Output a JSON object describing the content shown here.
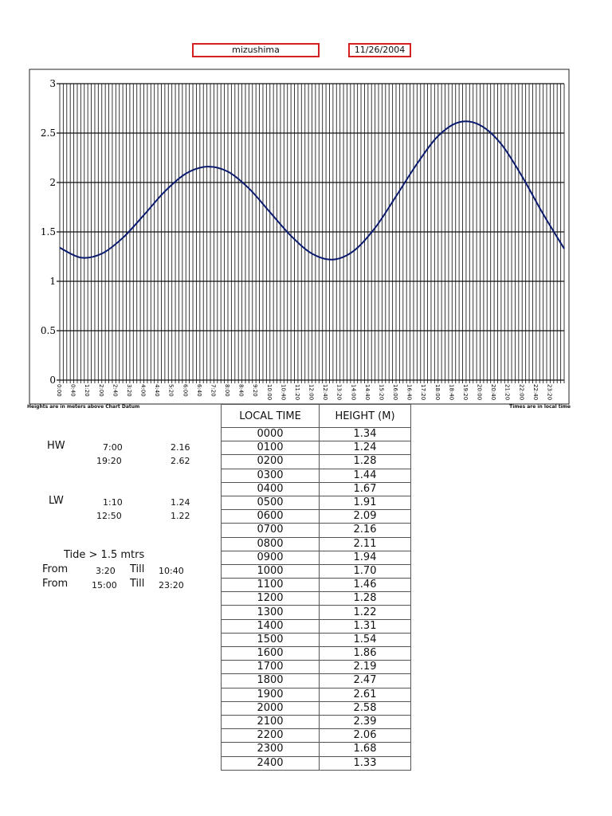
{
  "header": {
    "station": "mizushima",
    "date": "11/26/2004"
  },
  "notes": {
    "left": "Heights are in meters above Chart Datum",
    "right": "Times are in local time"
  },
  "summary": {
    "hw_label": "HW",
    "hw": [
      {
        "time": "7:00",
        "height": "2.16"
      },
      {
        "time": "19:20",
        "height": "2.62"
      }
    ],
    "lw_label": "LW",
    "lw": [
      {
        "time": "1:10",
        "height": "1.24"
      },
      {
        "time": "12:50",
        "height": "1.22"
      }
    ],
    "threshold_title": "Tide > 1.5 mtrs",
    "from_label": "From",
    "till_label": "Till",
    "periods": [
      {
        "from": "3:20",
        "till": "10:40"
      },
      {
        "from": "15:00",
        "till": "23:20"
      }
    ]
  },
  "table": {
    "headers": [
      "LOCAL TIME",
      "HEIGHT (M)"
    ],
    "rows": [
      [
        "0000",
        "1.34"
      ],
      [
        "0100",
        "1.24"
      ],
      [
        "0200",
        "1.28"
      ],
      [
        "0300",
        "1.44"
      ],
      [
        "0400",
        "1.67"
      ],
      [
        "0500",
        "1.91"
      ],
      [
        "0600",
        "2.09"
      ],
      [
        "0700",
        "2.16"
      ],
      [
        "0800",
        "2.11"
      ],
      [
        "0900",
        "1.94"
      ],
      [
        "1000",
        "1.70"
      ],
      [
        "1100",
        "1.46"
      ],
      [
        "1200",
        "1.28"
      ],
      [
        "1300",
        "1.22"
      ],
      [
        "1400",
        "1.31"
      ],
      [
        "1500",
        "1.54"
      ],
      [
        "1600",
        "1.86"
      ],
      [
        "1700",
        "2.19"
      ],
      [
        "1800",
        "2.47"
      ],
      [
        "1900",
        "2.61"
      ],
      [
        "2000",
        "2.58"
      ],
      [
        "2100",
        "2.39"
      ],
      [
        "2200",
        "2.06"
      ],
      [
        "2300",
        "1.68"
      ],
      [
        "2400",
        "1.33"
      ]
    ]
  },
  "chart_data": {
    "type": "line",
    "title": "",
    "xlabel": "",
    "ylabel": "",
    "ylim": [
      0,
      3
    ],
    "yticks": [
      "0",
      "0.5",
      "1",
      "1.5",
      "2",
      "2.5",
      "3"
    ],
    "xticks": [
      "0:00",
      "0:40",
      "1:20",
      "2:00",
      "2:40",
      "3:20",
      "4:00",
      "4:40",
      "5:20",
      "6:00",
      "6:40",
      "7:20",
      "8:00",
      "8:40",
      "9:20",
      "10:00",
      "10:40",
      "11:20",
      "12:00",
      "12:40",
      "13:20",
      "14:00",
      "14:40",
      "15:20",
      "16:00",
      "16:40",
      "17:20",
      "18:00",
      "18:40",
      "19:20",
      "20:00",
      "20:40",
      "21:20",
      "22:00",
      "22:40",
      "23:20"
    ],
    "grid": true,
    "line_color": "#0a1a6e",
    "series": [
      {
        "name": "",
        "x": [
          0,
          1,
          2,
          3,
          4,
          5,
          6,
          7,
          8,
          9,
          10,
          11,
          12,
          13,
          14,
          15,
          16,
          17,
          18,
          19,
          20,
          21,
          22,
          23,
          24
        ],
        "values": [
          1.34,
          1.24,
          1.28,
          1.44,
          1.67,
          1.91,
          2.09,
          2.16,
          2.11,
          1.94,
          1.7,
          1.46,
          1.28,
          1.22,
          1.31,
          1.54,
          1.86,
          2.19,
          2.47,
          2.61,
          2.58,
          2.39,
          2.06,
          1.68,
          1.33
        ]
      }
    ]
  }
}
